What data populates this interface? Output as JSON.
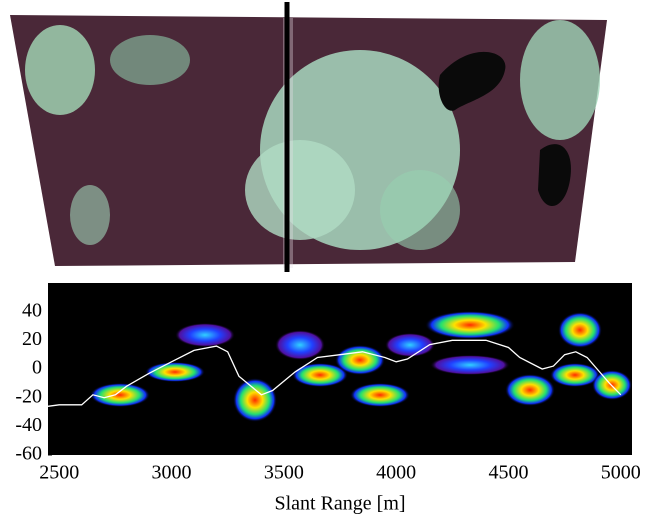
{
  "chart_data": {
    "type": "line",
    "x_label": "Slant Range [m]",
    "x": [
      2450,
      2500,
      2600,
      2650,
      2700,
      2750,
      2800,
      2900,
      3000,
      3100,
      3200,
      3250,
      3300,
      3400,
      3450,
      3550,
      3650,
      3750,
      3850,
      3950,
      4000,
      4050,
      4150,
      4250,
      4400,
      4500,
      4550,
      4650,
      4700,
      4750,
      4800,
      4850,
      4950,
      5000
    ],
    "series": [
      {
        "color": "#ffffff",
        "values": [
          -26,
          -25,
          -25,
          -18,
          -20,
          -18,
          -12,
          -3,
          5,
          13,
          16,
          12,
          -5,
          -18,
          -15,
          -2,
          8,
          10,
          12,
          8,
          5,
          7,
          17,
          20,
          20,
          15,
          8,
          0,
          2,
          10,
          12,
          8,
          -10,
          -18
        ]
      }
    ],
    "xlim": [
      2450,
      5050
    ],
    "xticks": [
      2500,
      3000,
      3500,
      4000,
      4500,
      5000
    ],
    "ylim": [
      -60,
      60
    ],
    "yticks": [
      40,
      20,
      0,
      -20,
      -40,
      -60
    ]
  }
}
